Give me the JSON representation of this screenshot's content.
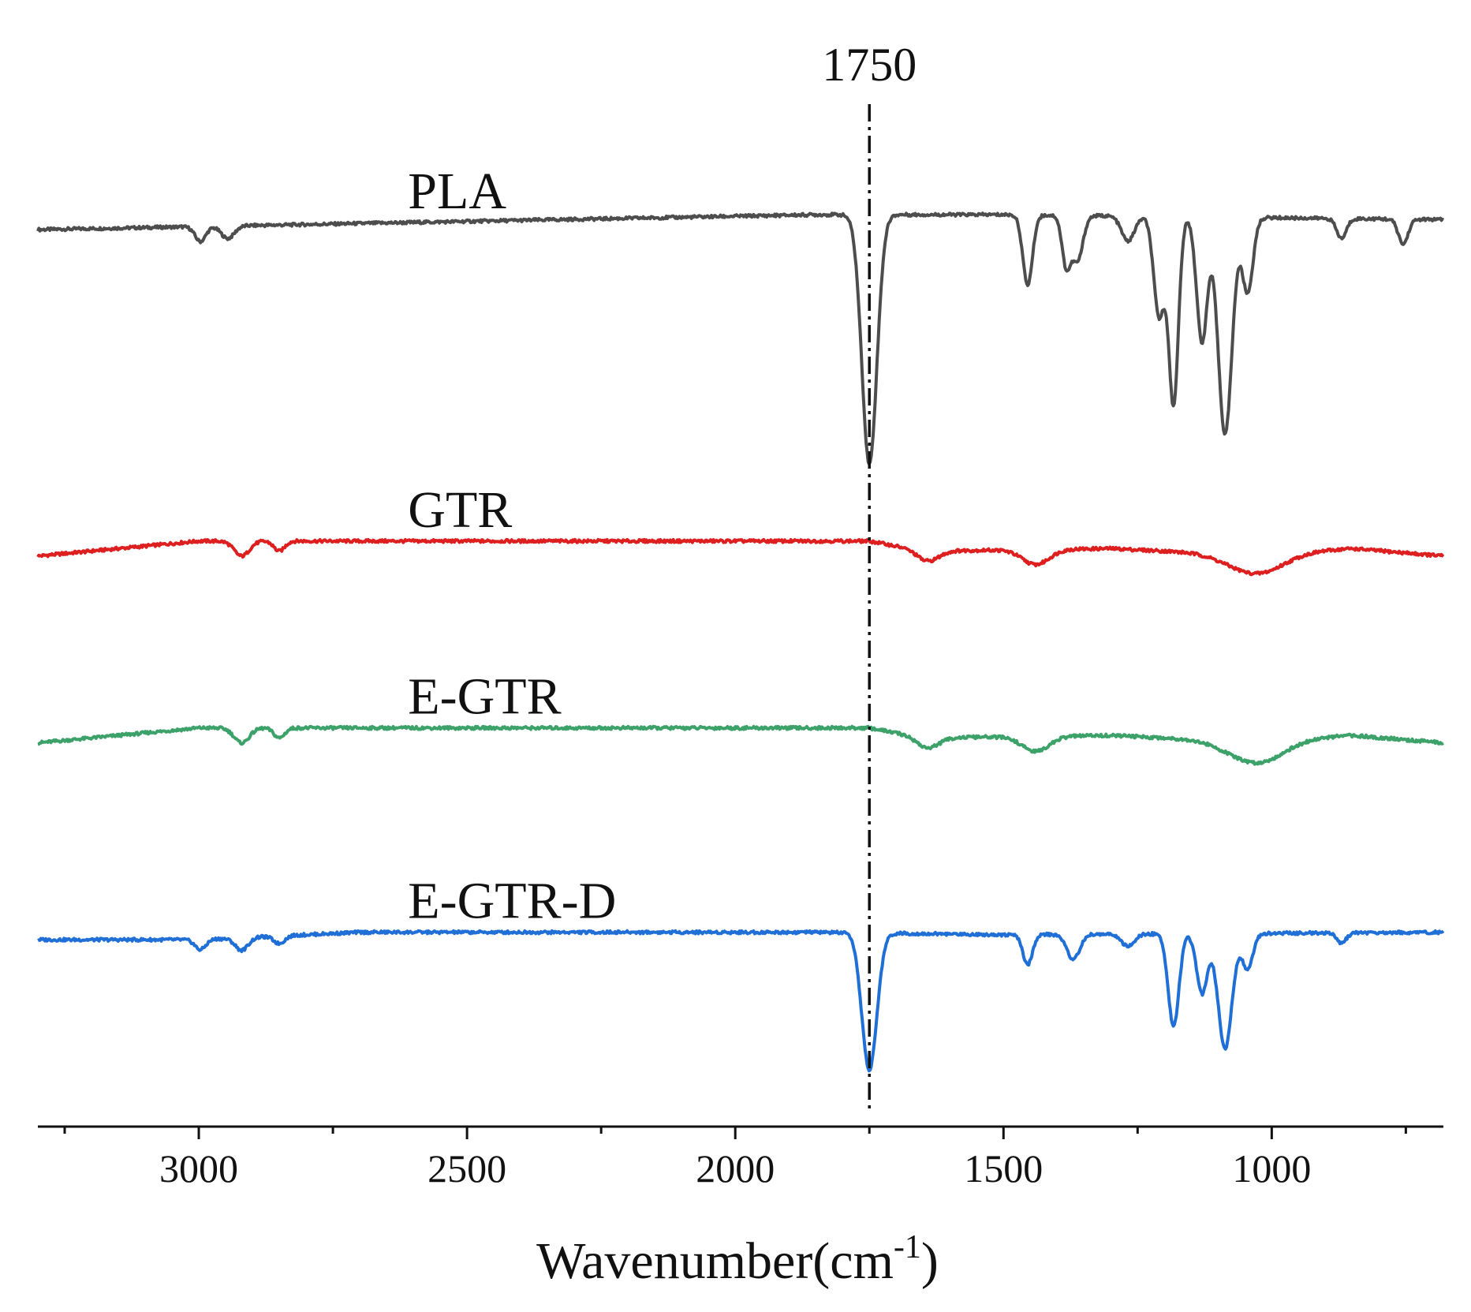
{
  "chart_data": {
    "type": "line",
    "title": "",
    "xlabel": "Wavenumber(cm",
    "xlabel_sup": "-1",
    "xlabel_close": ")",
    "ylabel": "",
    "xlim": [
      3300,
      680
    ],
    "x_reversed": true,
    "xticks": [
      3000,
      2500,
      2000,
      1500,
      1000
    ],
    "minor_step": 250,
    "ylim": [
      -0.15,
      4.15
    ],
    "grid": false,
    "reference_line": {
      "x": 1750,
      "label": "1750",
      "style": "dash-dot"
    },
    "series": [
      {
        "name": "PLA",
        "color": "#4d4d4d",
        "offset": 3.45,
        "scale": 1.0,
        "baseline": [
          [
            3300,
            0.0
          ],
          [
            1850,
            0.06
          ],
          [
            1500,
            0.06
          ],
          [
            680,
            0.04
          ]
        ],
        "peaks": [
          {
            "x": 2997,
            "d": 0.06,
            "w": 10
          },
          {
            "x": 2946,
            "d": 0.05,
            "w": 12
          },
          {
            "x": 1750,
            "d": 1.0,
            "w": 14
          },
          {
            "x": 1455,
            "d": 0.28,
            "w": 9
          },
          {
            "x": 1383,
            "d": 0.2,
            "w": 8
          },
          {
            "x": 1362,
            "d": 0.18,
            "w": 10
          },
          {
            "x": 1268,
            "d": 0.1,
            "w": 12
          },
          {
            "x": 1210,
            "d": 0.4,
            "w": 10
          },
          {
            "x": 1183,
            "d": 0.75,
            "w": 9
          },
          {
            "x": 1130,
            "d": 0.5,
            "w": 10
          },
          {
            "x": 1087,
            "d": 0.87,
            "w": 13
          },
          {
            "x": 1045,
            "d": 0.3,
            "w": 10
          },
          {
            "x": 870,
            "d": 0.08,
            "w": 9
          },
          {
            "x": 755,
            "d": 0.1,
            "w": 9
          }
        ]
      },
      {
        "name": "GTR",
        "color": "#dd1f1f",
        "offset": 2.2,
        "scale": 1.0,
        "baseline": [
          [
            3300,
            -0.06
          ],
          [
            3000,
            0.0
          ],
          [
            1750,
            0.0
          ],
          [
            1650,
            -0.04
          ],
          [
            1300,
            -0.03
          ],
          [
            1100,
            -0.05
          ],
          [
            1000,
            -0.05
          ],
          [
            850,
            -0.03
          ],
          [
            680,
            -0.06
          ]
        ],
        "peaks": [
          {
            "x": 2920,
            "d": 0.06,
            "w": 14
          },
          {
            "x": 2850,
            "d": 0.04,
            "w": 10
          },
          {
            "x": 1640,
            "d": 0.04,
            "w": 20
          },
          {
            "x": 1440,
            "d": 0.06,
            "w": 25
          },
          {
            "x": 1030,
            "d": 0.08,
            "w": 50
          }
        ]
      },
      {
        "name": "E-GTR",
        "color": "#3da26a",
        "offset": 1.45,
        "scale": 1.0,
        "baseline": [
          [
            3300,
            -0.06
          ],
          [
            3000,
            0.0
          ],
          [
            1750,
            0.0
          ],
          [
            1650,
            -0.04
          ],
          [
            1300,
            -0.03
          ],
          [
            1100,
            -0.05
          ],
          [
            1000,
            -0.05
          ],
          [
            850,
            -0.03
          ],
          [
            680,
            -0.06
          ]
        ],
        "peaks": [
          {
            "x": 2920,
            "d": 0.06,
            "w": 14
          },
          {
            "x": 2850,
            "d": 0.04,
            "w": 10
          },
          {
            "x": 1640,
            "d": 0.04,
            "w": 20
          },
          {
            "x": 1440,
            "d": 0.06,
            "w": 25
          },
          {
            "x": 1030,
            "d": 0.09,
            "w": 50
          }
        ]
      },
      {
        "name": "E-GTR-D",
        "color": "#1f6fd6",
        "offset": 0.6,
        "scale": 1.0,
        "baseline": [
          [
            3300,
            0.0
          ],
          [
            3000,
            0.0
          ],
          [
            2700,
            0.03
          ],
          [
            1850,
            0.03
          ],
          [
            1500,
            0.02
          ],
          [
            680,
            0.03
          ]
        ],
        "peaks": [
          {
            "x": 2997,
            "d": 0.04,
            "w": 10
          },
          {
            "x": 2920,
            "d": 0.05,
            "w": 12
          },
          {
            "x": 2850,
            "d": 0.03,
            "w": 10
          },
          {
            "x": 1750,
            "d": 0.55,
            "w": 14
          },
          {
            "x": 1455,
            "d": 0.12,
            "w": 9
          },
          {
            "x": 1370,
            "d": 0.1,
            "w": 12
          },
          {
            "x": 1268,
            "d": 0.05,
            "w": 12
          },
          {
            "x": 1183,
            "d": 0.37,
            "w": 10
          },
          {
            "x": 1130,
            "d": 0.24,
            "w": 10
          },
          {
            "x": 1087,
            "d": 0.46,
            "w": 13
          },
          {
            "x": 1045,
            "d": 0.14,
            "w": 10
          },
          {
            "x": 870,
            "d": 0.04,
            "w": 9
          }
        ]
      }
    ]
  }
}
